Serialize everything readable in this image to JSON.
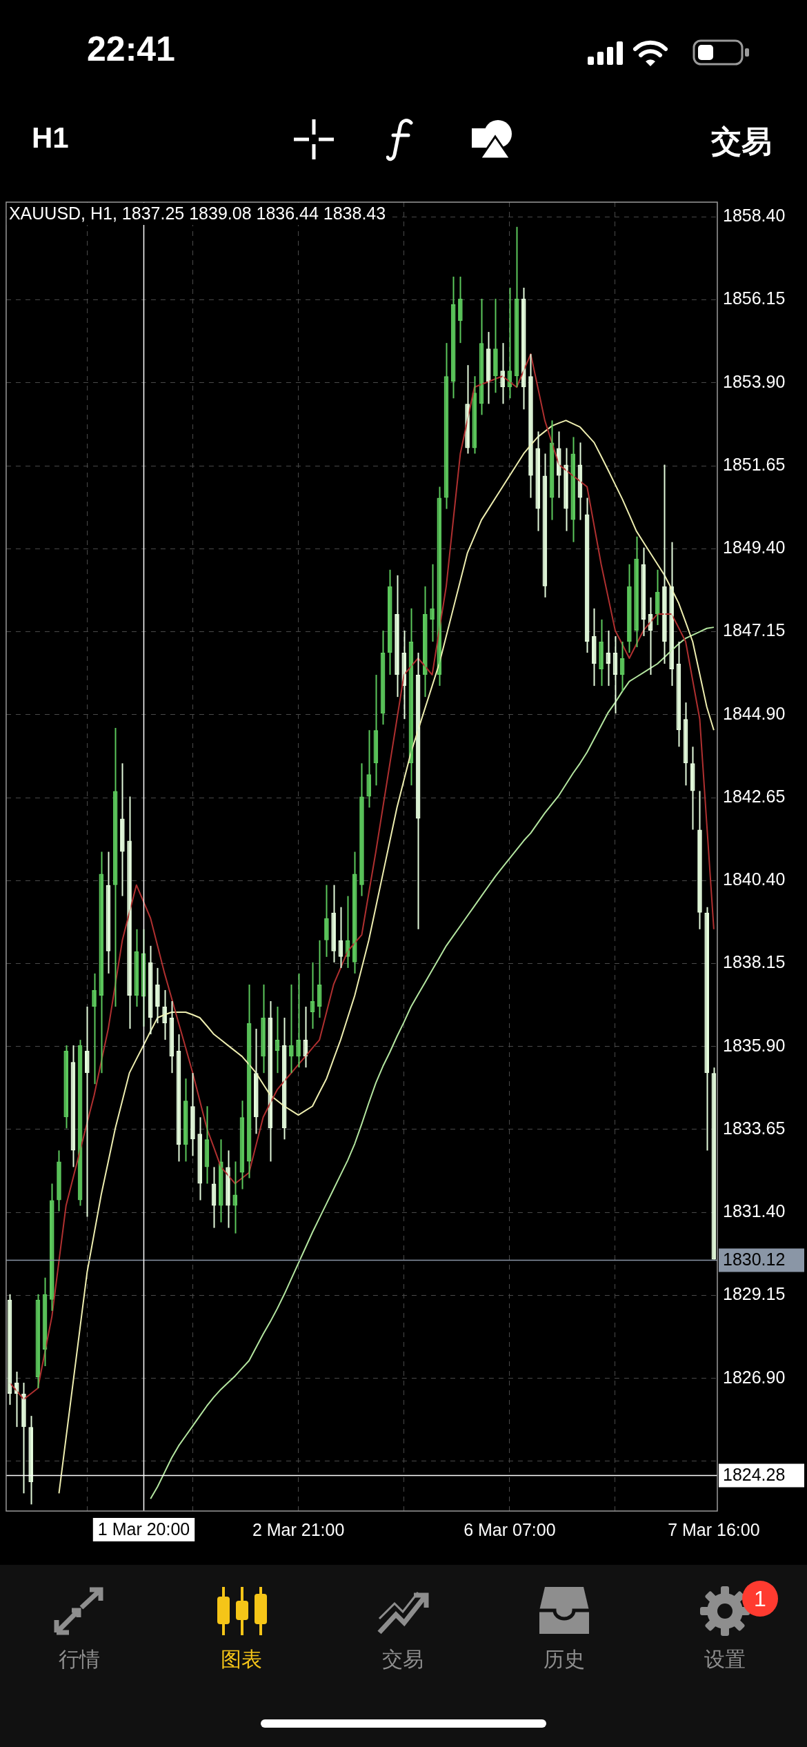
{
  "chart_data": {
    "type": "candlestick",
    "title": "XAUUSD, H1, 1837.25 1839.08 1836.44 1838.43",
    "categories": [
      null,
      null,
      null,
      null,
      null,
      null,
      null,
      null,
      null,
      null,
      null,
      null,
      null,
      null,
      null,
      null,
      null,
      null,
      null,
      "1 Mar 20:00",
      null,
      null,
      null,
      null,
      null,
      null,
      null,
      null,
      null,
      null,
      null,
      null,
      null,
      null,
      null,
      null,
      null,
      null,
      null,
      null,
      null,
      "2 Mar 21:00",
      null,
      null,
      null,
      null,
      null,
      null,
      null,
      null,
      null,
      null,
      null,
      null,
      null,
      null,
      null,
      null,
      null,
      null,
      null,
      null,
      null,
      null,
      null,
      null,
      null,
      null,
      null,
      null,
      null,
      "6 Mar 07:00",
      null,
      null,
      null,
      null,
      null,
      null,
      null,
      null,
      null,
      null,
      null,
      null,
      null,
      null,
      null,
      null,
      null,
      null,
      null,
      null,
      null,
      null,
      null,
      null,
      null,
      null,
      null,
      null,
      "7 Mar 16:00"
    ],
    "ohlc": [
      [
        1829.03,
        1829.18,
        1826.18,
        1826.48
      ],
      [
        1826.78,
        1827.08,
        1825.58,
        1826.48
      ],
      [
        1826.48,
        1826.78,
        1823.78,
        1825.58
      ],
      [
        1825.58,
        1825.88,
        1823.48,
        1824.08
      ],
      [
        1826.93,
        1829.18,
        1826.63,
        1829.03
      ],
      [
        1827.68,
        1829.63,
        1827.23,
        1829.18
      ],
      [
        1829.03,
        1832.18,
        1828.73,
        1831.73
      ],
      [
        1831.73,
        1833.08,
        1831.43,
        1832.78
      ],
      [
        1833.98,
        1835.93,
        1833.68,
        1835.78
      ],
      [
        1835.48,
        1835.93,
        1832.63,
        1833.08
      ],
      [
        1831.73,
        1836.08,
        1831.58,
        1835.93
      ],
      [
        1835.78,
        1836.98,
        1831.28,
        1835.18
      ],
      [
        1836.98,
        1837.88,
        1834.88,
        1837.43
      ],
      [
        1837.28,
        1841.18,
        1835.18,
        1840.58
      ],
      [
        1840.28,
        1841.18,
        1837.88,
        1838.48
      ],
      [
        1840.28,
        1844.54,
        1836.98,
        1842.83
      ],
      [
        1842.08,
        1843.58,
        1839.98,
        1841.18
      ],
      [
        1841.48,
        1842.68,
        1836.38,
        1837.28
      ],
      [
        1837.28,
        1839.08,
        1836.98,
        1838.48
      ],
      [
        1837.25,
        1839.08,
        1836.44,
        1838.43
      ],
      [
        1838.18,
        1838.63,
        1836.23,
        1836.68
      ],
      [
        1837.58,
        1838.03,
        1836.53,
        1836.98
      ],
      [
        1836.98,
        1837.43,
        1836.08,
        1836.53
      ],
      [
        1836.68,
        1837.13,
        1835.18,
        1835.63
      ],
      [
        1835.78,
        1836.23,
        1832.78,
        1833.23
      ],
      [
        1833.23,
        1835.03,
        1832.78,
        1834.43
      ],
      [
        1834.28,
        1835.18,
        1832.93,
        1833.38
      ],
      [
        1833.53,
        1833.98,
        1831.73,
        1832.18
      ],
      [
        1832.63,
        1834.28,
        1832.18,
        1833.38
      ],
      [
        1832.18,
        1832.63,
        1830.98,
        1831.58
      ],
      [
        1831.58,
        1833.38,
        1831.13,
        1832.78
      ],
      [
        1832.63,
        1833.08,
        1830.98,
        1831.58
      ],
      [
        1831.58,
        1832.78,
        1830.83,
        1831.88
      ],
      [
        1832.48,
        1834.43,
        1832.03,
        1833.98
      ],
      [
        1832.78,
        1837.58,
        1832.33,
        1836.53
      ],
      [
        1835.18,
        1836.38,
        1833.53,
        1833.98
      ],
      [
        1835.63,
        1837.58,
        1835.18,
        1836.68
      ],
      [
        1836.68,
        1837.13,
        1832.78,
        1833.68
      ],
      [
        1835.78,
        1836.98,
        1835.18,
        1836.08
      ],
      [
        1835.93,
        1836.68,
        1833.38,
        1833.68
      ],
      [
        1835.63,
        1837.58,
        1835.18,
        1835.93
      ],
      [
        1835.63,
        1837.88,
        1835.33,
        1836.08
      ],
      [
        1836.08,
        1836.98,
        1835.33,
        1835.63
      ],
      [
        1836.83,
        1838.18,
        1836.38,
        1837.13
      ],
      [
        1836.98,
        1838.78,
        1836.68,
        1837.58
      ],
      [
        1838.78,
        1840.28,
        1838.33,
        1839.38
      ],
      [
        1839.53,
        1840.28,
        1838.18,
        1838.48
      ],
      [
        1838.78,
        1839.68,
        1838.03,
        1838.33
      ],
      [
        1838.33,
        1839.98,
        1838.03,
        1838.78
      ],
      [
        1838.18,
        1841.18,
        1837.88,
        1840.58
      ],
      [
        1840.28,
        1843.58,
        1839.98,
        1842.68
      ],
      [
        1842.68,
        1844.48,
        1842.38,
        1843.28
      ],
      [
        1843.58,
        1845.98,
        1842.98,
        1844.48
      ],
      [
        1844.93,
        1847.18,
        1844.63,
        1846.58
      ],
      [
        1846.58,
        1848.83,
        1845.98,
        1848.38
      ],
      [
        1847.63,
        1848.68,
        1845.38,
        1845.98
      ],
      [
        1846.58,
        1847.18,
        1844.78,
        1845.68
      ],
      [
        1843.58,
        1847.78,
        1842.98,
        1846.88
      ],
      [
        1845.98,
        1846.58,
        1839.08,
        1842.08
      ],
      [
        1845.98,
        1848.38,
        1845.38,
        1847.63
      ],
      [
        1847.48,
        1848.98,
        1846.88,
        1847.78
      ],
      [
        1845.98,
        1851.08,
        1845.68,
        1850.78
      ],
      [
        1850.78,
        1854.98,
        1850.48,
        1854.08
      ],
      [
        1853.93,
        1856.78,
        1853.48,
        1856.03
      ],
      [
        1855.58,
        1856.78,
        1854.98,
        1856.18
      ],
      [
        1853.33,
        1854.38,
        1851.98,
        1852.13
      ],
      [
        1852.13,
        1854.08,
        1851.98,
        1853.63
      ],
      [
        1853.33,
        1856.18,
        1853.03,
        1854.98
      ],
      [
        1854.83,
        1855.28,
        1853.33,
        1853.93
      ],
      [
        1854.08,
        1856.18,
        1853.63,
        1854.83
      ],
      [
        1854.23,
        1854.98,
        1853.33,
        1853.78
      ],
      [
        1853.78,
        1856.48,
        1853.48,
        1854.23
      ],
      [
        1854.08,
        1858.13,
        1853.78,
        1856.18
      ],
      [
        1856.18,
        1856.48,
        1853.18,
        1853.78
      ],
      [
        1854.08,
        1854.68,
        1850.78,
        1851.38
      ],
      [
        1852.13,
        1852.58,
        1849.88,
        1850.48
      ],
      [
        1851.38,
        1851.98,
        1848.08,
        1848.38
      ],
      [
        1850.78,
        1852.88,
        1850.18,
        1852.28
      ],
      [
        1852.13,
        1852.58,
        1850.78,
        1851.38
      ],
      [
        1851.68,
        1852.13,
        1849.88,
        1850.48
      ],
      [
        1850.18,
        1852.43,
        1849.58,
        1851.98
      ],
      [
        1851.68,
        1852.28,
        1850.18,
        1850.78
      ],
      [
        1850.33,
        1850.78,
        1846.58,
        1846.88
      ],
      [
        1847.03,
        1847.78,
        1845.68,
        1846.28
      ],
      [
        1846.13,
        1847.48,
        1845.68,
        1846.88
      ],
      [
        1846.58,
        1847.18,
        1845.68,
        1846.28
      ],
      [
        1846.58,
        1847.03,
        1844.93,
        1845.98
      ],
      [
        1845.98,
        1846.88,
        1845.53,
        1846.43
      ],
      [
        1846.88,
        1848.98,
        1846.58,
        1848.38
      ],
      [
        1847.18,
        1849.73,
        1846.73,
        1849.13
      ],
      [
        1848.98,
        1849.43,
        1847.03,
        1847.48
      ],
      [
        1847.63,
        1848.08,
        1845.98,
        1847.18
      ],
      [
        1847.63,
        1848.83,
        1847.33,
        1848.23
      ],
      [
        1848.38,
        1851.68,
        1846.28,
        1846.88
      ],
      [
        1848.38,
        1849.58,
        1845.68,
        1846.13
      ],
      [
        1846.28,
        1846.88,
        1844.03,
        1844.48
      ],
      [
        1844.78,
        1845.23,
        1842.98,
        1843.58
      ],
      [
        1843.58,
        1844.03,
        1841.78,
        1842.83
      ],
      [
        1841.78,
        1842.83,
        1839.08,
        1839.53
      ],
      [
        1839.53,
        1839.68,
        1833.08,
        1835.18
      ],
      [
        1835.18,
        1835.33,
        1830.12,
        1830.12
      ]
    ],
    "colors": [
      "#e4fbdc",
      "#e4fbdc",
      "#e4fbdc",
      "#e4fbdc",
      "#5cc85c",
      "#5cc85c",
      "#5cc85c",
      "#5cc85c",
      "#5cc85c",
      "#e4fbdc",
      "#5cc85c",
      "#e4fbdc",
      "#5cc85c",
      "#5cc85c",
      "#e4fbdc",
      "#5cc85c",
      "#e4fbdc",
      "#e4fbdc",
      "#5cc85c",
      "#5cc85c",
      "#e4fbdc",
      "#e4fbdc",
      "#e4fbdc",
      "#e4fbdc",
      "#e4fbdc",
      "#5cc85c",
      "#e4fbdc",
      "#e4fbdc",
      "#5cc85c",
      "#e4fbdc",
      "#5cc85c",
      "#e4fbdc",
      "#5cc85c",
      "#5cc85c",
      "#5cc85c",
      "#e4fbdc",
      "#5cc85c",
      "#e4fbdc",
      "#5cc85c",
      "#e4fbdc",
      "#5cc85c",
      "#5cc85c",
      "#e4fbdc",
      "#5cc85c",
      "#5cc85c",
      "#5cc85c",
      "#e4fbdc",
      "#e4fbdc",
      "#5cc85c",
      "#5cc85c",
      "#5cc85c",
      "#5cc85c",
      "#5cc85c",
      "#5cc85c",
      "#5cc85c",
      "#e4fbdc",
      "#e4fbdc",
      "#5cc85c",
      "#e4fbdc",
      "#5cc85c",
      "#5cc85c",
      "#5cc85c",
      "#5cc85c",
      "#5cc85c",
      "#5cc85c",
      "#e4fbdc",
      "#5cc85c",
      "#5cc85c",
      "#e4fbdc",
      "#5cc85c",
      "#e4fbdc",
      "#5cc85c",
      "#5cc85c",
      "#e4fbdc",
      "#e4fbdc",
      "#e4fbdc",
      "#e4fbdc",
      "#5cc85c",
      "#e4fbdc",
      "#e4fbdc",
      "#5cc85c",
      "#e4fbdc",
      "#e4fbdc",
      "#e4fbdc",
      "#5cc85c",
      "#e4fbdc",
      "#e4fbdc",
      "#5cc85c",
      "#5cc85c",
      "#5cc85c",
      "#e4fbdc",
      "#e4fbdc",
      "#5cc85c",
      "#e4fbdc",
      "#e4fbdc",
      "#e4fbdc",
      "#e4fbdc",
      "#e4fbdc",
      "#e4fbdc",
      "#e4fbdc",
      "#e4fbdc"
    ],
    "series": [
      {
        "type": "line",
        "color": "#b03030",
        "values": [
          1826.78,
          1826.56,
          1826.33,
          1826.48,
          1826.63,
          1827.61,
          1828.58,
          1830.08,
          1831.58,
          1832.33,
          1833.08,
          1833.83,
          1834.58,
          1835.48,
          1836.38,
          1837.58,
          1838.78,
          1839.53,
          1840.28,
          1839.83,
          1839.38,
          1838.63,
          1837.88,
          1837.21,
          1836.53,
          1835.86,
          1835.18,
          1834.43,
          1833.68,
          1833.16,
          1832.63,
          1832.41,
          1832.18,
          1832.33,
          1832.48,
          1833.23,
          1833.98,
          1834.36,
          1834.73,
          1834.96,
          1835.18,
          1835.41,
          1835.63,
          1835.86,
          1836.08,
          1836.83,
          1837.58,
          1838.03,
          1838.48,
          1838.71,
          1838.93,
          1840.06,
          1841.18,
          1842.38,
          1843.58,
          1844.78,
          1845.98,
          1846.21,
          1846.43,
          1846.21,
          1845.98,
          1847.18,
          1848.38,
          1850.18,
          1851.98,
          1852.88,
          1853.78,
          1853.86,
          1853.93,
          1854.01,
          1854.08,
          1853.93,
          1853.78,
          1854.23,
          1854.68,
          1853.78,
          1852.88,
          1852.28,
          1851.68,
          1851.53,
          1851.38,
          1851.23,
          1851.08,
          1850.03,
          1848.98,
          1848.08,
          1847.18,
          1846.81,
          1846.43,
          1846.81,
          1847.18,
          1847.41,
          1847.63,
          1847.63,
          1847.63,
          1847.26,
          1846.88,
          1845.83,
          1844.78,
          1841.93,
          1839.08
        ]
      },
      {
        "type": "line",
        "color": "#eeeeb0",
        "values": [
          null,
          null,
          null,
          null,
          null,
          null,
          null,
          1823.78,
          1825.28,
          1826.78,
          1828.28,
          1829.78,
          1830.83,
          1831.88,
          1832.78,
          1833.68,
          1834.43,
          1835.18,
          1835.56,
          1835.93,
          1836.31,
          1836.68,
          1836.76,
          1836.83,
          1836.83,
          1836.83,
          1836.76,
          1836.68,
          1836.46,
          1836.23,
          1836.08,
          1835.93,
          1835.78,
          1835.63,
          1835.41,
          1835.18,
          1834.88,
          1834.58,
          1834.43,
          1834.28,
          1834.16,
          1834.04,
          1834.16,
          1834.28,
          1834.66,
          1835.03,
          1835.56,
          1836.08,
          1836.68,
          1837.28,
          1838.03,
          1838.78,
          1839.68,
          1840.58,
          1841.48,
          1842.38,
          1843.13,
          1843.88,
          1844.48,
          1845.08,
          1845.68,
          1846.28,
          1847.03,
          1847.78,
          1848.53,
          1849.28,
          1849.73,
          1850.18,
          1850.48,
          1850.78,
          1851.08,
          1851.38,
          1851.68,
          1851.98,
          1852.21,
          1852.43,
          1852.58,
          1852.73,
          1852.81,
          1852.88,
          1852.79,
          1852.7,
          1852.49,
          1852.28,
          1851.91,
          1851.53,
          1851.14,
          1850.75,
          1850.32,
          1849.88,
          1849.58,
          1849.28,
          1848.98,
          1848.68,
          1848.31,
          1847.93,
          1847.41,
          1846.88,
          1846.0,
          1845.11,
          1844.48
        ]
      },
      {
        "type": "line",
        "color": "#b4e6a0",
        "values": [
          null,
          null,
          null,
          null,
          null,
          null,
          null,
          null,
          null,
          null,
          null,
          null,
          null,
          null,
          null,
          null,
          null,
          null,
          null,
          null,
          1823.63,
          1823.96,
          1824.35,
          1824.74,
          1825.07,
          1825.34,
          1825.61,
          1825.88,
          1826.15,
          1826.39,
          1826.6,
          1826.78,
          1826.96,
          1827.17,
          1827.38,
          1827.74,
          1828.1,
          1828.43,
          1828.79,
          1829.18,
          1829.6,
          1830.02,
          1830.44,
          1830.86,
          1831.25,
          1831.64,
          1832.03,
          1832.42,
          1832.81,
          1833.26,
          1833.8,
          1834.37,
          1834.91,
          1835.36,
          1835.75,
          1836.17,
          1836.56,
          1836.98,
          1837.31,
          1837.64,
          1837.97,
          1838.3,
          1838.63,
          1838.9,
          1839.17,
          1839.44,
          1839.71,
          1839.98,
          1840.25,
          1840.52,
          1840.76,
          1841.0,
          1841.24,
          1841.48,
          1841.69,
          1841.96,
          1842.23,
          1842.47,
          1842.71,
          1843.01,
          1843.31,
          1843.58,
          1843.88,
          1844.24,
          1844.6,
          1844.96,
          1845.23,
          1845.53,
          1845.8,
          1845.92,
          1846.04,
          1846.16,
          1846.28,
          1846.46,
          1846.64,
          1846.82,
          1846.97,
          1847.06,
          1847.15,
          1847.24,
          1847.27
        ]
      }
    ],
    "ylim": [
      1823.3,
      1858.8
    ],
    "yticks": [
      {
        "value": 1858.4,
        "label": "1858.40"
      },
      1856.15,
      {
        "value": 1853.9,
        "label": "1853.90"
      },
      1851.65,
      {
        "value": 1849.4,
        "label": "1849.40"
      },
      1847.15,
      {
        "value": 1844.9,
        "label": "1844.90"
      },
      1842.65,
      {
        "value": 1840.4,
        "label": "1840.40"
      },
      1838.15,
      {
        "value": 1835.9,
        "label": "1835.90"
      },
      1833.65,
      {
        "value": 1831.4,
        "label": "1831.40"
      },
      1829.15,
      {
        "value": 1826.9,
        "label": "1826.90"
      },
      {
        "value": 1824.65,
        "label": null
      }
    ],
    "grid": true,
    "ref_lines": [
      {
        "axis": "y",
        "value": 1830.12,
        "label": "1830.12",
        "color": "#8a96a6"
      },
      {
        "axis": "y",
        "value": 1824.28,
        "label": "1824.28",
        "color": "#ffffff"
      },
      {
        "axis": "x",
        "value": "1 Mar 20:00",
        "color": "#ffffff"
      }
    ],
    "annotations": [
      "22:41",
      "H1",
      "交易",
      "行情",
      "图表",
      "交易",
      "历史",
      "设置",
      "1"
    ]
  }
}
